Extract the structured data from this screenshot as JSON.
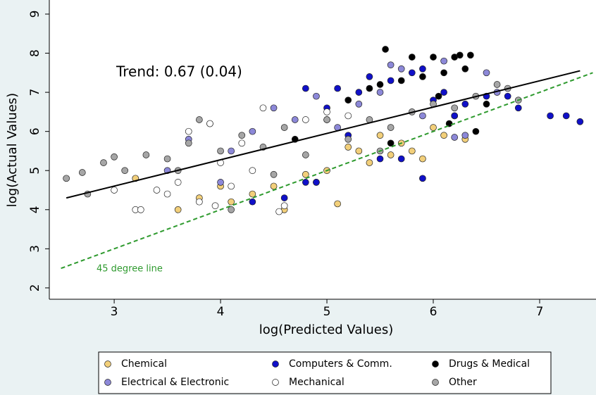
{
  "chart_data": {
    "type": "scatter",
    "x_label": "log(Predicted Values)",
    "y_label": "log(Actual Values)",
    "xlim": [
      2.39,
      7.53
    ],
    "ylim": [
      1.71,
      9.36
    ],
    "xticks": [
      3,
      4,
      5,
      6,
      7
    ],
    "yticks": [
      2,
      3,
      4,
      5,
      6,
      7,
      8,
      9
    ],
    "series": [
      {
        "name": "Chemical",
        "color": "#f2cf7a",
        "x": [
          3.2,
          3.6,
          4.1,
          4.3,
          4.5,
          4.6,
          4.8,
          5.0,
          5.1,
          5.2,
          5.4,
          5.5,
          5.6,
          5.7,
          5.8,
          5.9,
          6.0,
          6.1,
          6.2,
          6.3,
          4.9,
          5.3,
          3.8,
          4.0
        ],
        "values": [
          4.8,
          4.0,
          4.2,
          4.4,
          4.6,
          4.0,
          4.9,
          5.0,
          4.15,
          5.6,
          5.2,
          5.9,
          5.4,
          5.7,
          5.5,
          5.3,
          6.1,
          5.9,
          6.4,
          5.8,
          4.7,
          5.5,
          4.3,
          4.6
        ]
      },
      {
        "name": "Computers & Comm.",
        "color": "#1010c8",
        "x": [
          4.3,
          4.6,
          4.8,
          4.9,
          5.0,
          5.1,
          5.2,
          5.3,
          5.5,
          5.6,
          5.7,
          5.8,
          5.9,
          6.0,
          6.1,
          6.2,
          6.3,
          6.5,
          6.7,
          6.8,
          7.1,
          7.25,
          7.38,
          5.4,
          5.9,
          4.8
        ],
        "values": [
          4.2,
          4.3,
          4.7,
          4.7,
          6.6,
          7.1,
          5.9,
          7.0,
          5.3,
          7.3,
          5.3,
          7.5,
          4.8,
          6.8,
          7.0,
          6.4,
          6.7,
          6.9,
          6.9,
          6.6,
          6.4,
          6.4,
          6.25,
          7.4,
          7.6,
          7.1
        ]
      },
      {
        "name": "Drugs & Medical",
        "color": "#000000",
        "x": [
          4.7,
          5.0,
          5.2,
          5.4,
          5.5,
          5.55,
          5.7,
          5.8,
          5.9,
          6.0,
          6.05,
          6.1,
          6.2,
          6.25,
          6.3,
          6.35,
          6.4,
          6.5,
          5.6,
          6.15
        ],
        "values": [
          5.8,
          6.3,
          6.8,
          7.1,
          7.2,
          8.1,
          7.3,
          7.9,
          7.4,
          7.9,
          6.9,
          7.5,
          7.9,
          7.95,
          7.6,
          7.95,
          6.0,
          6.7,
          5.7,
          6.2
        ]
      },
      {
        "name": "Electrical & Electronic",
        "color": "#8c88d8",
        "x": [
          3.5,
          3.7,
          3.9,
          4.1,
          4.3,
          4.5,
          4.7,
          4.9,
          5.1,
          5.3,
          5.5,
          5.7,
          5.9,
          6.1,
          6.3,
          6.5,
          6.6,
          6.2,
          4.0,
          5.6
        ],
        "values": [
          5.0,
          5.8,
          6.2,
          5.5,
          6.0,
          6.6,
          6.3,
          6.9,
          6.1,
          6.7,
          7.0,
          7.6,
          6.4,
          7.8,
          5.9,
          7.5,
          7.0,
          5.85,
          4.7,
          7.7
        ]
      },
      {
        "name": "Mechanical",
        "color": "#ffffff",
        "x": [
          3.2,
          3.25,
          3.4,
          3.6,
          3.7,
          3.8,
          3.9,
          4.0,
          4.2,
          4.4,
          4.55,
          4.6,
          4.8,
          5.0,
          3.5,
          3.95,
          4.3,
          5.2,
          3.0,
          4.1
        ],
        "values": [
          4.0,
          4.0,
          4.5,
          4.7,
          6.0,
          4.2,
          6.2,
          5.2,
          5.7,
          6.6,
          3.95,
          4.1,
          6.3,
          6.5,
          4.4,
          4.1,
          5.0,
          6.4,
          4.5,
          4.6
        ]
      },
      {
        "name": "Other",
        "color": "#a6a6a6",
        "x": [
          2.55,
          2.7,
          2.75,
          2.9,
          3.0,
          3.1,
          3.3,
          3.5,
          3.7,
          3.8,
          4.0,
          4.2,
          4.4,
          4.6,
          4.8,
          5.0,
          5.2,
          5.4,
          5.6,
          5.8,
          6.0,
          6.2,
          6.4,
          6.6,
          6.8,
          4.1,
          4.5,
          3.6,
          5.5,
          6.7
        ],
        "values": [
          4.8,
          4.95,
          4.4,
          5.2,
          5.35,
          5.0,
          5.4,
          5.3,
          5.7,
          6.3,
          5.5,
          5.9,
          5.6,
          6.1,
          5.4,
          6.3,
          5.8,
          6.3,
          6.1,
          6.5,
          6.7,
          6.6,
          6.9,
          7.2,
          6.8,
          4.0,
          4.9,
          5.0,
          5.5,
          7.1
        ]
      }
    ],
    "trend_line": {
      "label": "Trend: 0.67 (0.04)",
      "color": "#000000",
      "x": [
        2.55,
        7.38
      ],
      "values": [
        4.3,
        7.55
      ]
    },
    "reference_line": {
      "label": "45 degree line",
      "color": "#2e9a2e",
      "x": [
        2.5,
        7.5
      ],
      "values": [
        2.5,
        7.5
      ]
    }
  }
}
